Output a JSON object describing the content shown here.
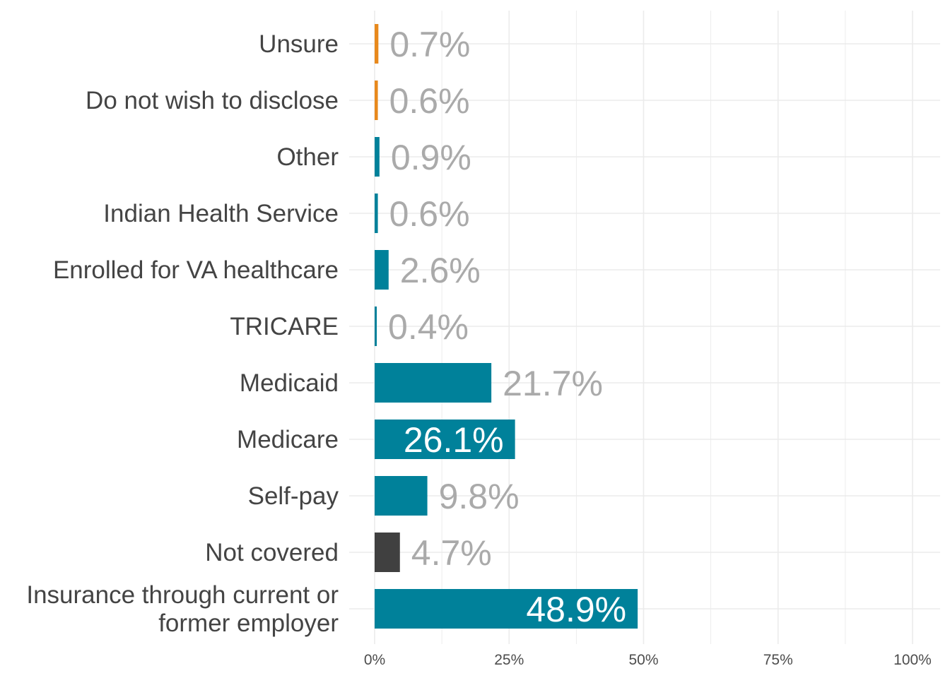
{
  "chart_data": {
    "type": "bar",
    "orientation": "horizontal",
    "title": "",
    "xlabel": "",
    "ylabel": "",
    "xlim": [
      0,
      100
    ],
    "grid": true,
    "legend": "none",
    "x_ticks": [
      "0%",
      "25%",
      "50%",
      "75%",
      "100%"
    ],
    "x_tick_values": [
      0,
      25,
      50,
      75,
      100
    ],
    "categories": [
      "Unsure",
      "Do not wish to disclose",
      "Other",
      "Indian Health Service",
      "Enrolled for VA healthcare",
      "TRICARE",
      "Medicaid",
      "Medicare",
      "Self-pay",
      "Not covered",
      "Insurance through current or former employer"
    ],
    "category_lines": [
      [
        "Unsure"
      ],
      [
        "Do not wish to disclose"
      ],
      [
        "Other"
      ],
      [
        "Indian Health Service"
      ],
      [
        "Enrolled for VA healthcare"
      ],
      [
        "TRICARE"
      ],
      [
        "Medicaid"
      ],
      [
        "Medicare"
      ],
      [
        "Self-pay"
      ],
      [
        "Not covered"
      ],
      [
        "Insurance through current or",
        "former employer"
      ]
    ],
    "values": [
      0.7,
      0.6,
      0.9,
      0.6,
      2.6,
      0.4,
      21.7,
      26.1,
      9.8,
      4.7,
      48.9
    ],
    "value_labels": [
      "0.7%",
      "0.6%",
      "0.9%",
      "0.6%",
      "2.6%",
      "0.4%",
      "21.7%",
      "26.1%",
      "9.8%",
      "4.7%",
      "48.9%"
    ],
    "bar_colors": [
      "#e8891c",
      "#e8891c",
      "#00819a",
      "#00819a",
      "#00819a",
      "#00819a",
      "#00819a",
      "#00819a",
      "#00819a",
      "#404040",
      "#00819a"
    ],
    "label_inside": [
      false,
      false,
      false,
      false,
      false,
      false,
      false,
      true,
      false,
      false,
      true
    ],
    "colors": {
      "label_outside": "#aaaaaa",
      "label_inside": "#ffffff",
      "grid": "#ebebeb",
      "category_text": "#444444",
      "tick_text": "#4d4d4d"
    }
  }
}
